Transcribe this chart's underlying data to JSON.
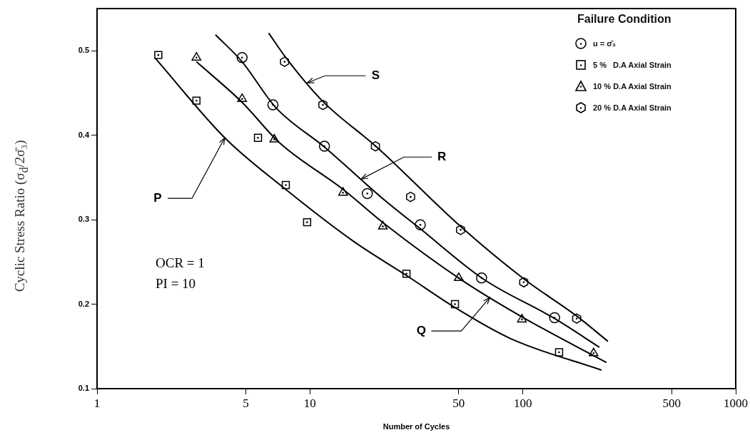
{
  "chart_data": {
    "type": "scatter",
    "xlabel": "Number of Cycles",
    "ylabel": "Cyclic Stress Ratio (σ$_{d}$/2σ̄₃)",
    "legend_title": "Failure Condition",
    "legend": "top right",
    "log": "x",
    "grid": false,
    "xlim": [
      1,
      1000
    ],
    "xticks": [
      1,
      5,
      10,
      50,
      100,
      500,
      1000
    ],
    "ylim": [
      0.1,
      0.55
    ],
    "yticks": [
      0.1,
      0.2,
      0.3,
      0.4,
      0.5
    ],
    "annotations": [
      "OCR = 1",
      "PI = 10",
      {
        "text": "P",
        "x": 3.98,
        "y": 0.397
      },
      {
        "text": "Q",
        "x": 70,
        "y": 0.208
      },
      {
        "text": "R",
        "x": 17.4,
        "y": 0.348
      },
      {
        "text": "S",
        "x": 9.7,
        "y": 0.462
      }
    ],
    "series": [
      {
        "name": "u = σ̄₃",
        "type": "scatter",
        "marker": "circle",
        "color": "#000000",
        "x": [
          4.8,
          6.7,
          11.7,
          18.6,
          33,
          64,
          141
        ],
        "values": [
          0.492,
          0.436,
          0.387,
          0.331,
          0.294,
          0.231,
          0.184
        ]
      },
      {
        "name": "5 %   D.A Axial Strain",
        "type": "scatter",
        "marker": "square",
        "color": "#000000",
        "x": [
          1.94,
          2.93,
          5.7,
          7.7,
          9.7,
          28.4,
          48,
          148
        ],
        "values": [
          0.495,
          0.441,
          0.397,
          0.341,
          0.297,
          0.236,
          0.2,
          0.143
        ]
      },
      {
        "name": "10 % D.A Axial Strain",
        "type": "scatter",
        "marker": "triangle",
        "color": "#000000",
        "x": [
          2.93,
          4.8,
          6.8,
          14.3,
          22,
          50,
          99,
          215
        ],
        "values": [
          0.492,
          0.443,
          0.395,
          0.332,
          0.292,
          0.231,
          0.182,
          0.142
        ]
      },
      {
        "name": "20 % D.A Axial Strain",
        "type": "scatter",
        "color": "#000000",
        "x": [
          7.6,
          11.5,
          20.3,
          29.7,
          51,
          101,
          179
        ],
        "values": [
          0.487,
          0.436,
          0.387,
          0.327,
          0.288,
          0.226,
          0.183
        ]
      },
      {
        "type": "line",
        "marker": "none",
        "color": "#000000",
        "x": [
          1.88,
          3.98,
          7.6,
          16.1,
          28.4,
          48,
          88,
          234
        ],
        "values": [
          0.491,
          0.397,
          0.337,
          0.274,
          0.234,
          0.196,
          0.159,
          0.122
        ]
      },
      {
        "type": "line",
        "marker": "none",
        "color": "#000000",
        "x": [
          2.93,
          4.8,
          7.2,
          14.3,
          22.7,
          52,
          99,
          247
        ],
        "values": [
          0.487,
          0.439,
          0.391,
          0.336,
          0.294,
          0.228,
          0.185,
          0.131
        ]
      },
      {
        "type": "line",
        "marker": "none",
        "color": "#000000",
        "x": [
          3.6,
          4.8,
          6.9,
          11.7,
          22.7,
          32,
          65,
          141,
          229
        ],
        "values": [
          0.519,
          0.487,
          0.433,
          0.386,
          0.322,
          0.292,
          0.23,
          0.183,
          0.149
        ]
      },
      {
        "type": "line",
        "marker": "none",
        "color": "#000000",
        "x": [
          6.4,
          7.7,
          11.4,
          20.6,
          51,
          101,
          179,
          251
        ],
        "values": [
          0.521,
          0.492,
          0.441,
          0.386,
          0.292,
          0.23,
          0.186,
          0.156
        ]
      }
    ]
  }
}
